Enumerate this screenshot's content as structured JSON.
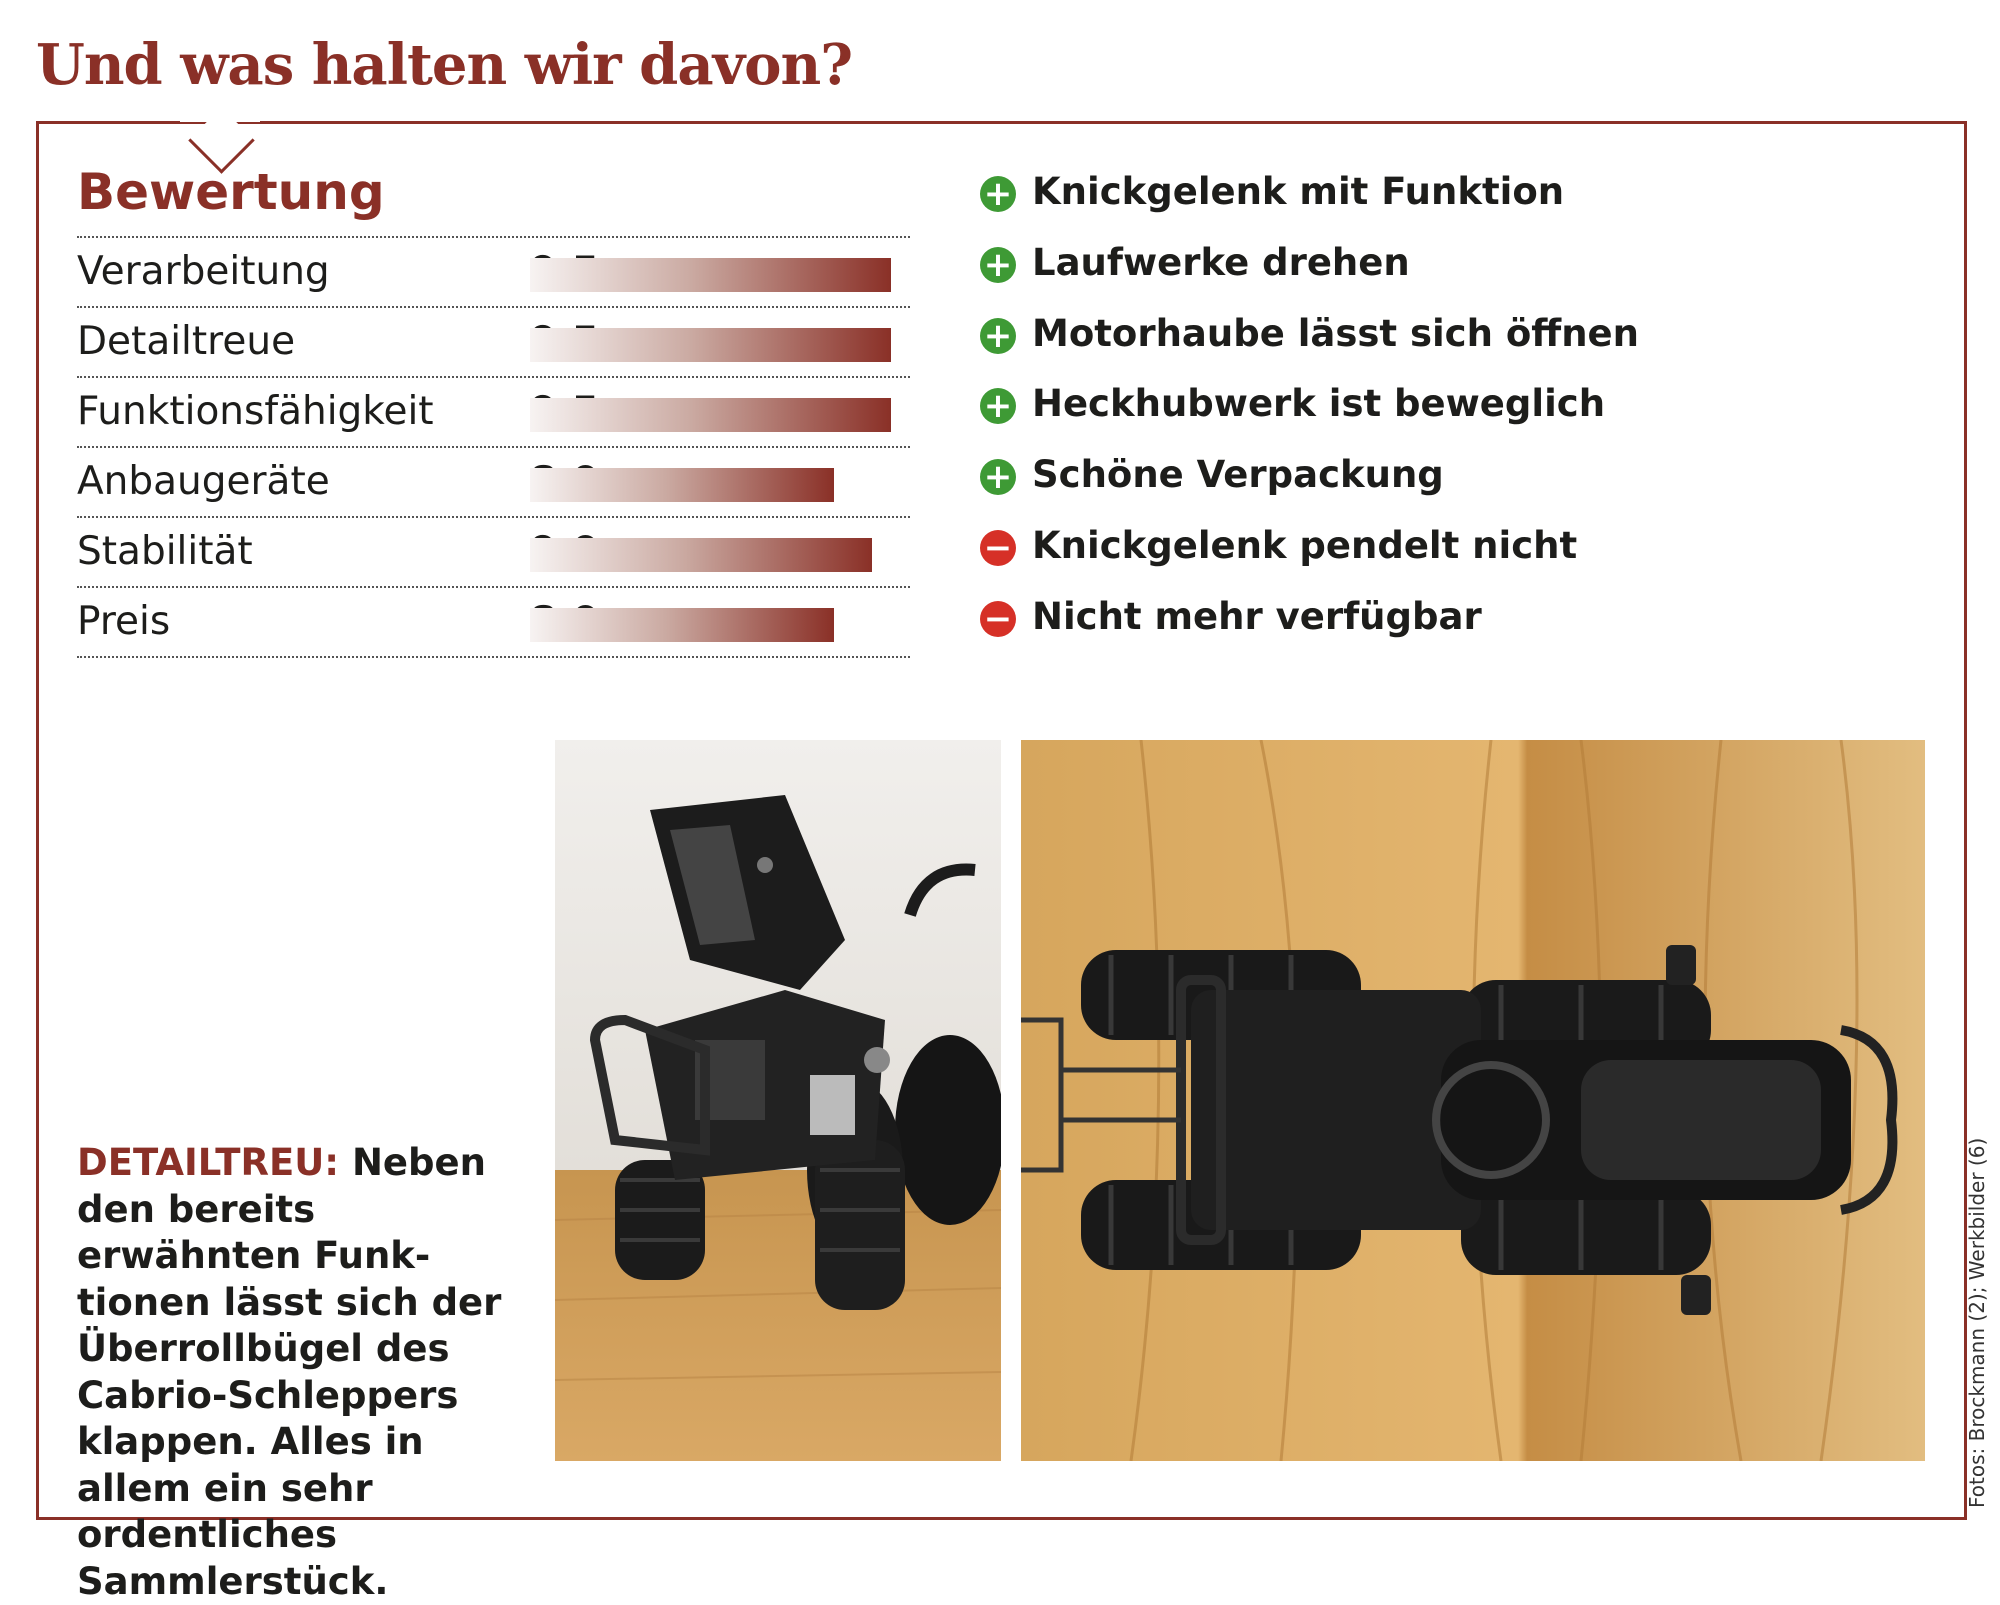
{
  "headline": "Und was halten wir davon?",
  "rating": {
    "title": "Bewertung",
    "max_score": 10,
    "rows": [
      {
        "label": "Verarbeitung",
        "score": "9,5",
        "value": 9.5
      },
      {
        "label": "Detailtreue",
        "score": "9,5",
        "value": 9.5
      },
      {
        "label": "Funktionsfähigkeit",
        "score": "9,5",
        "value": 9.5
      },
      {
        "label": "Anbaugeräte",
        "score": "8,0",
        "value": 8.0
      },
      {
        "label": "Stabilität",
        "score": "9,0",
        "value": 9.0
      },
      {
        "label": "Preis",
        "score": "8,0",
        "value": 8.0
      }
    ]
  },
  "pros_cons": [
    {
      "type": "plus",
      "text": "Knickgelenk mit Funktion"
    },
    {
      "type": "plus",
      "text": "Laufwerke drehen"
    },
    {
      "type": "plus",
      "text": "Motorhaube lässt sich öffnen"
    },
    {
      "type": "plus",
      "text": "Heckhubwerk ist beweglich"
    },
    {
      "type": "plus",
      "text": "Schöne Verpackung"
    },
    {
      "type": "minus",
      "text": "Knickgelenk pendelt nicht"
    },
    {
      "type": "minus",
      "text": "Nicht mehr verfügbar"
    }
  ],
  "caption": {
    "lead": "DETAILTREU:",
    "text": " Neben den bereits erwähnten Funk­tionen lässt sich der Überrollbügel des Cabrio-Schleppers klappen. Alles in allem ein sehr ordentli­ches Sammlerstück."
  },
  "credit": "Fotos: Brockmann (2); Werkbilder (6)",
  "colors": {
    "accent": "#8a3027",
    "plus": "#3e9a35",
    "minus": "#d63027"
  },
  "photos": [
    {
      "subject": "tractor model front view with open hood"
    },
    {
      "subject": "tractor model top view on wooden surface"
    }
  ]
}
